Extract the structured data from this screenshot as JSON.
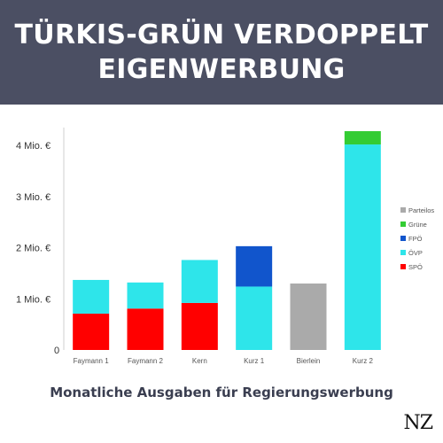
{
  "header": {
    "title_line1": "TÜRKIS-GRÜN VERDOPPELT",
    "title_line2": "EIGENWERBUNG"
  },
  "caption": "Monatliche Ausgaben für Regierungswerbung",
  "logo": "NZ",
  "chart_data": {
    "type": "bar",
    "stacked": true,
    "categories": [
      "Faymann 1",
      "Faymann 2",
      "Kern",
      "Kurz 1",
      "Bierlein",
      "Kurz 2"
    ],
    "y_tick_labels": [
      "0",
      "1 Mio. €",
      "2 Mio. €",
      "3 Mio. €",
      "4 Mio. €"
    ],
    "y_ticks": [
      0,
      1,
      2,
      3,
      4
    ],
    "ylim": [
      0,
      4.35
    ],
    "grid": false,
    "legend_position": "right",
    "series": [
      {
        "name": "SPÖ",
        "color": "#ff0000",
        "values": [
          0.71,
          0.81,
          0.92,
          0,
          0,
          0
        ]
      },
      {
        "name": "ÖVP",
        "color": "#2ee5ea",
        "values": [
          0.66,
          0.51,
          0.84,
          1.24,
          0,
          4.02
        ]
      },
      {
        "name": "FPÖ",
        "color": "#1155cc",
        "values": [
          0,
          0,
          0,
          0.79,
          0,
          0
        ]
      },
      {
        "name": "Grüne",
        "color": "#33cc33",
        "values": [
          0,
          0,
          0,
          0,
          0,
          0.26
        ]
      },
      {
        "name": "Parteilos",
        "color": "#aaaaaa",
        "values": [
          0,
          0,
          0,
          0,
          1.3,
          0
        ]
      }
    ],
    "legend_order": [
      "Parteilos",
      "Grüne",
      "FPÖ",
      "ÖVP",
      "SPÖ"
    ]
  }
}
